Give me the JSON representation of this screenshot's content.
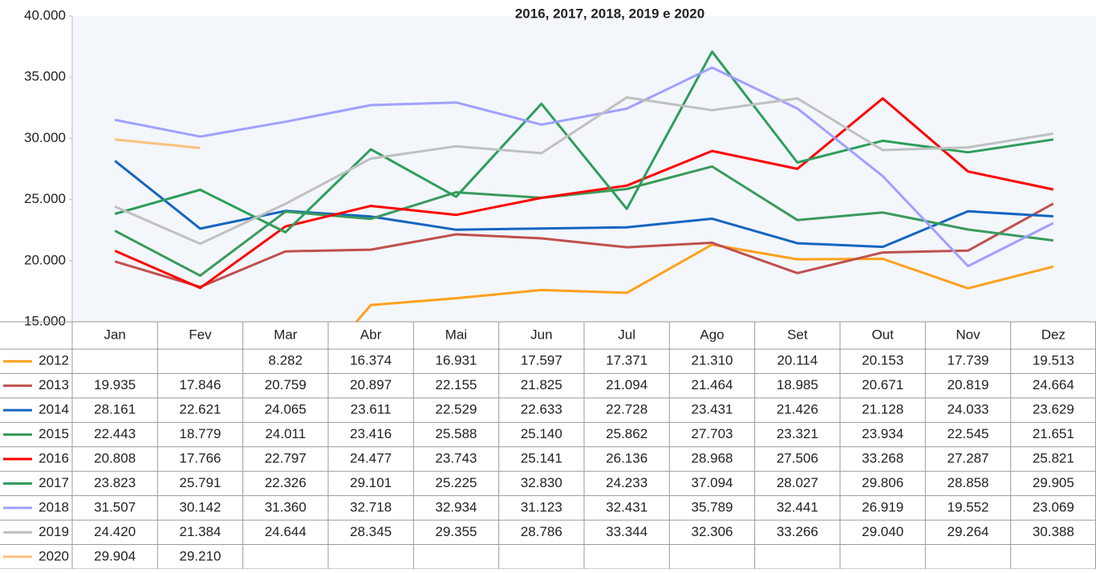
{
  "chart_data": {
    "type": "line",
    "title": "2016, 2017, 2018, 2019 e 2020",
    "categories": [
      "Jan",
      "Fev",
      "Mar",
      "Abr",
      "Mai",
      "Jun",
      "Jul",
      "Ago",
      "Set",
      "Out",
      "Nov",
      "Dez"
    ],
    "ylim": [
      15000,
      40000
    ],
    "yticks": [
      {
        "value": 15000,
        "label": "15.000"
      },
      {
        "value": 20000,
        "label": "20.000"
      },
      {
        "value": 25000,
        "label": "25.000"
      },
      {
        "value": 30000,
        "label": "30.000"
      },
      {
        "value": 35000,
        "label": "35.000"
      },
      {
        "value": 40000,
        "label": "40.000"
      }
    ],
    "series": [
      {
        "name": "2012",
        "color": "#ffa01c",
        "values": [
          null,
          null,
          8282,
          16374,
          16931,
          17597,
          17371,
          21310,
          20114,
          20153,
          17739,
          19513
        ],
        "value_labels": [
          null,
          null,
          "8.282",
          "16.374",
          "16.931",
          "17.597",
          "17.371",
          "21.310",
          "20.114",
          "20.153",
          "17.739",
          "19.513"
        ]
      },
      {
        "name": "2013",
        "color": "#c0504d",
        "values": [
          19935,
          17846,
          20759,
          20897,
          22155,
          21825,
          21094,
          21464,
          18985,
          20671,
          20819,
          24664
        ],
        "value_labels": [
          "19.935",
          "17.846",
          "20.759",
          "20.897",
          "22.155",
          "21.825",
          "21.094",
          "21.464",
          "18.985",
          "20.671",
          "20.819",
          "24.664"
        ]
      },
      {
        "name": "2014",
        "color": "#1565c0",
        "values": [
          28161,
          22621,
          24065,
          23611,
          22529,
          22633,
          22728,
          23431,
          21426,
          21128,
          24033,
          23629
        ],
        "value_labels": [
          "28.161",
          "22.621",
          "24.065",
          "23.611",
          "22.529",
          "22.633",
          "22.728",
          "23.431",
          "21.426",
          "21.128",
          "24.033",
          "23.629"
        ]
      },
      {
        "name": "2015",
        "color": "#3a9a5c",
        "values": [
          22443,
          18779,
          24011,
          23416,
          25588,
          25140,
          25862,
          27703,
          23321,
          23934,
          22545,
          21651
        ],
        "value_labels": [
          "22.443",
          "18.779",
          "24.011",
          "23.416",
          "25.588",
          "25.140",
          "25.862",
          "27.703",
          "23.321",
          "23.934",
          "22.545",
          "21.651"
        ]
      },
      {
        "name": "2016",
        "color": "#ff0000",
        "values": [
          20808,
          17766,
          22797,
          24477,
          23743,
          25141,
          26136,
          28968,
          27506,
          33268,
          27287,
          25821
        ],
        "value_labels": [
          "20.808",
          "17.766",
          "22.797",
          "24.477",
          "23.743",
          "25.141",
          "26.136",
          "28.968",
          "27.506",
          "33.268",
          "27.287",
          "25.821"
        ]
      },
      {
        "name": "2017",
        "color": "#2e9e5b",
        "values": [
          23823,
          25791,
          22326,
          29101,
          25225,
          32830,
          24233,
          37094,
          28027,
          29806,
          28858,
          29905
        ],
        "value_labels": [
          "23.823",
          "25.791",
          "22.326",
          "29.101",
          "25.225",
          "32.830",
          "24.233",
          "37.094",
          "28.027",
          "29.806",
          "28.858",
          "29.905"
        ]
      },
      {
        "name": "2018",
        "color": "#a0a0ff",
        "values": [
          31507,
          30142,
          31360,
          32718,
          32934,
          31123,
          32431,
          35789,
          32441,
          26919,
          19552,
          23069
        ],
        "value_labels": [
          "31.507",
          "30.142",
          "31.360",
          "32.718",
          "32.934",
          "31.123",
          "32.431",
          "35.789",
          "32.441",
          "26.919",
          "19.552",
          "23.069"
        ]
      },
      {
        "name": "2019",
        "color": "#c0c0c0",
        "values": [
          24420,
          21384,
          24644,
          28345,
          29355,
          28786,
          33344,
          32306,
          33266,
          29040,
          29264,
          30388
        ],
        "value_labels": [
          "24.420",
          "21.384",
          "24.644",
          "28.345",
          "29.355",
          "28.786",
          "33.344",
          "32.306",
          "33.266",
          "29.040",
          "29.264",
          "30.388"
        ]
      },
      {
        "name": "2020",
        "color": "#ffc080",
        "values": [
          29904,
          29210,
          null,
          null,
          null,
          null,
          null,
          null,
          null,
          null,
          null,
          null
        ],
        "value_labels": [
          "29.904",
          "29.210",
          null,
          null,
          null,
          null,
          null,
          null,
          null,
          null,
          null,
          null
        ]
      }
    ]
  }
}
